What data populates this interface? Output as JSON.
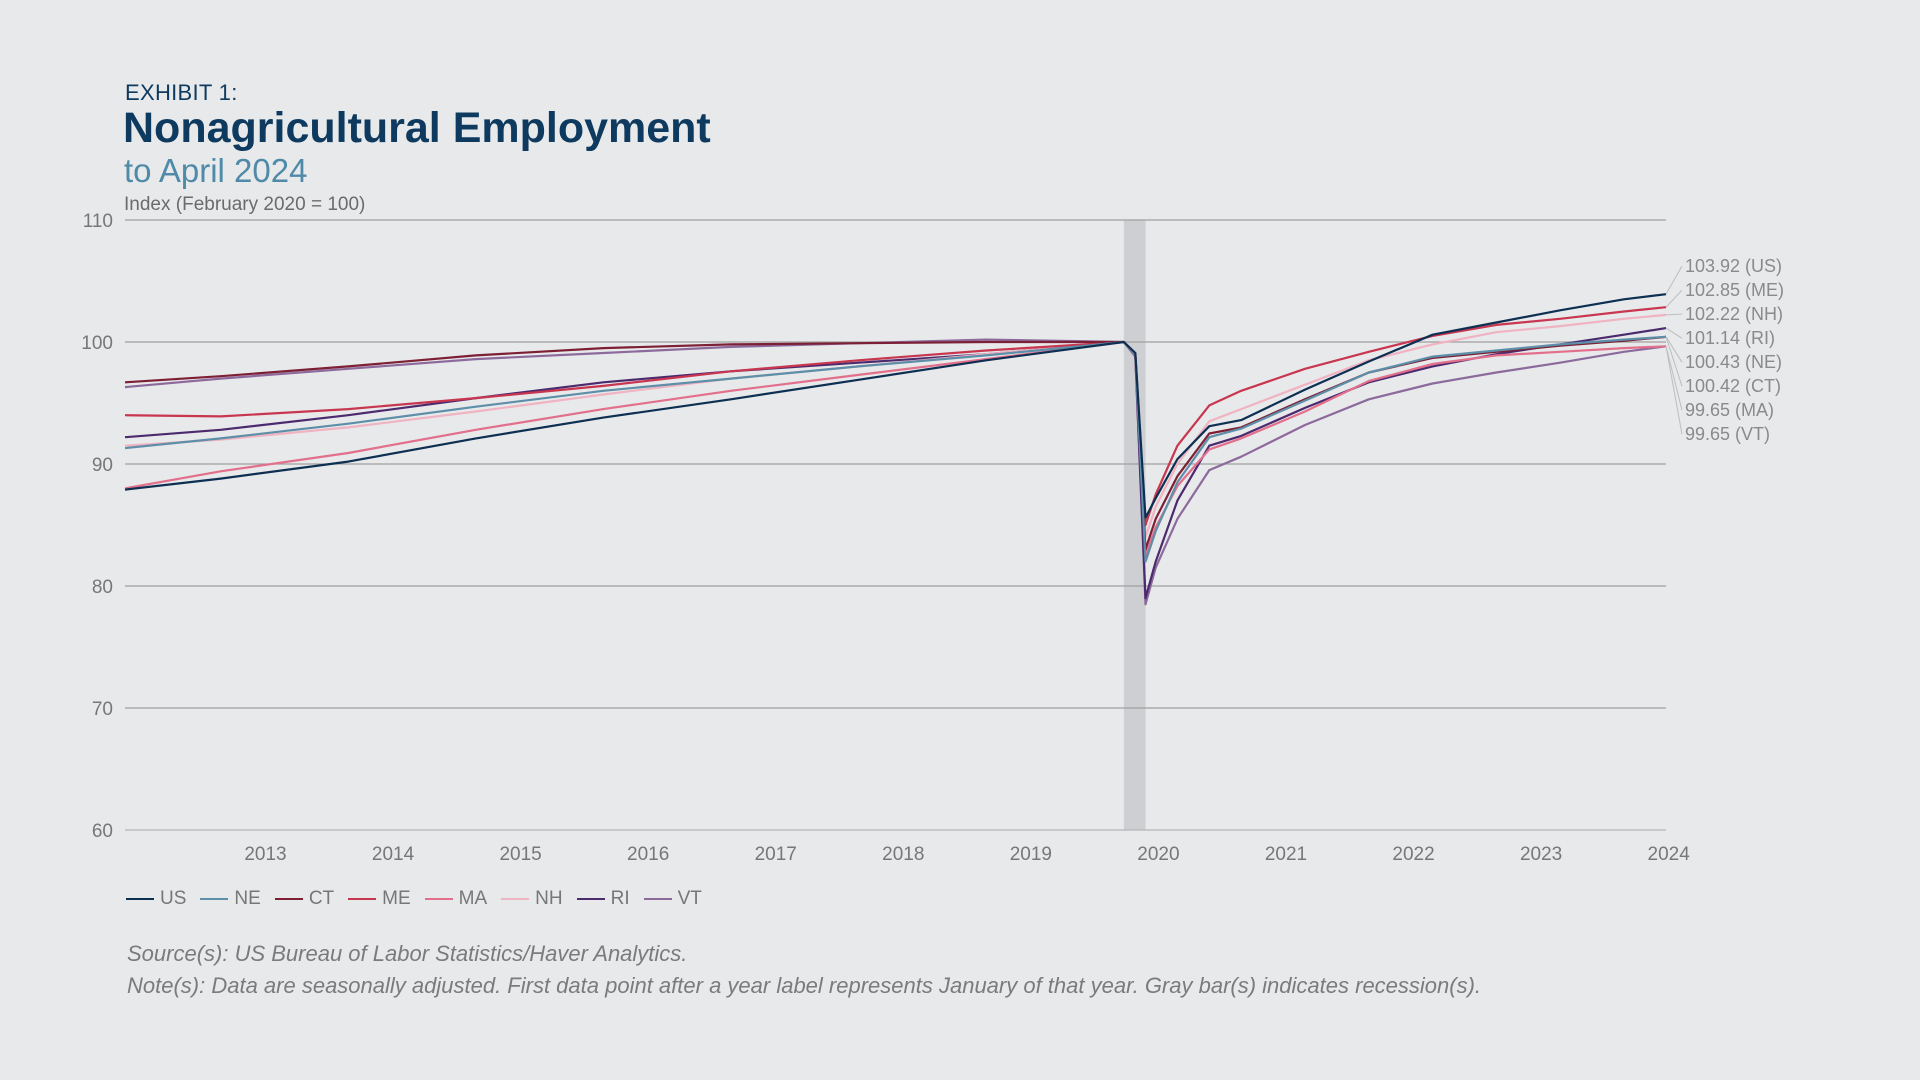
{
  "header": {
    "exhibit": "EXHIBIT 1:",
    "title": "Nonagricultural Employment",
    "subtitle": "to April 2024",
    "unit": "Index (February 2020 = 100)"
  },
  "notes": {
    "source": "Source(s): US Bureau of Labor Statistics/Haver Analytics.",
    "note": "Note(s): Data are seasonally adjusted. First data point after a year label represents January of that year. Gray bar(s) indicates recession(s)."
  },
  "chart_data": {
    "type": "line",
    "ylim": [
      60,
      110
    ],
    "yticks": [
      "60",
      "70",
      "80",
      "90",
      "100",
      "110"
    ],
    "xlim": [
      2012.25,
      2024.33
    ],
    "xticks": [
      "2013",
      "2014",
      "2015",
      "2016",
      "2017",
      "2018",
      "2019",
      "2020",
      "2021",
      "2022",
      "2023",
      "2024"
    ],
    "recession": [
      2020.08,
      2020.25
    ],
    "grid": true,
    "legend_position": "bottom-left",
    "series": [
      {
        "name": "US",
        "color": "#0d2f52",
        "end_label": "103.92 (US)",
        "points": [
          [
            2012.25,
            87.9
          ],
          [
            2013,
            88.8
          ],
          [
            2014,
            90.2
          ],
          [
            2015,
            92.1
          ],
          [
            2016,
            93.8
          ],
          [
            2017,
            95.3
          ],
          [
            2018,
            96.9
          ],
          [
            2019,
            98.5
          ],
          [
            2020.08,
            100
          ],
          [
            2020.17,
            99.1
          ],
          [
            2020.25,
            85.6
          ],
          [
            2020.33,
            87.2
          ],
          [
            2020.5,
            90.4
          ],
          [
            2020.75,
            93.1
          ],
          [
            2021,
            93.6
          ],
          [
            2021.5,
            96.1
          ],
          [
            2022,
            98.4
          ],
          [
            2022.5,
            100.6
          ],
          [
            2023,
            101.6
          ],
          [
            2023.5,
            102.6
          ],
          [
            2024,
            103.5
          ],
          [
            2024.33,
            103.92
          ]
        ]
      },
      {
        "name": "NE",
        "color": "#5e8fa8",
        "end_label": "100.43 (NE)",
        "points": [
          [
            2012.25,
            91.3
          ],
          [
            2013,
            92.1
          ],
          [
            2014,
            93.3
          ],
          [
            2015,
            94.7
          ],
          [
            2016,
            96.0
          ],
          [
            2017,
            97.0
          ],
          [
            2018,
            98.0
          ],
          [
            2019,
            98.9
          ],
          [
            2020.08,
            100
          ],
          [
            2020.17,
            99.0
          ],
          [
            2020.25,
            82.0
          ],
          [
            2020.33,
            84.5
          ],
          [
            2020.5,
            88.5
          ],
          [
            2020.75,
            92.2
          ],
          [
            2021,
            92.9
          ],
          [
            2021.5,
            95.2
          ],
          [
            2022,
            97.5
          ],
          [
            2022.5,
            98.8
          ],
          [
            2023,
            99.3
          ],
          [
            2023.5,
            99.8
          ],
          [
            2024,
            100.2
          ],
          [
            2024.33,
            100.43
          ]
        ]
      },
      {
        "name": "CT",
        "color": "#7d1f35",
        "end_label": "100.42 (CT)",
        "points": [
          [
            2012.25,
            96.7
          ],
          [
            2013,
            97.2
          ],
          [
            2014,
            98.0
          ],
          [
            2015,
            98.9
          ],
          [
            2016,
            99.5
          ],
          [
            2017,
            99.8
          ],
          [
            2018,
            99.9
          ],
          [
            2019,
            100.0
          ],
          [
            2020.08,
            100
          ],
          [
            2020.17,
            99.0
          ],
          [
            2020.25,
            83.0
          ],
          [
            2020.33,
            85.5
          ],
          [
            2020.5,
            89.0
          ],
          [
            2020.75,
            92.5
          ],
          [
            2021,
            93.0
          ],
          [
            2021.5,
            95.3
          ],
          [
            2022,
            97.5
          ],
          [
            2022.5,
            98.7
          ],
          [
            2023,
            99.2
          ],
          [
            2023.5,
            99.7
          ],
          [
            2024,
            100.1
          ],
          [
            2024.33,
            100.42
          ]
        ]
      },
      {
        "name": "ME",
        "color": "#c8364f",
        "end_label": "102.85 (ME)",
        "points": [
          [
            2012.25,
            94.0
          ],
          [
            2013,
            93.9
          ],
          [
            2014,
            94.5
          ],
          [
            2015,
            95.4
          ],
          [
            2016,
            96.4
          ],
          [
            2017,
            97.6
          ],
          [
            2018,
            98.5
          ],
          [
            2019,
            99.3
          ],
          [
            2020.08,
            100
          ],
          [
            2020.17,
            99.1
          ],
          [
            2020.25,
            85.0
          ],
          [
            2020.33,
            87.5
          ],
          [
            2020.5,
            91.5
          ],
          [
            2020.75,
            94.8
          ],
          [
            2021,
            96.0
          ],
          [
            2021.5,
            97.8
          ],
          [
            2022,
            99.2
          ],
          [
            2022.5,
            100.5
          ],
          [
            2023,
            101.4
          ],
          [
            2023.5,
            101.9
          ],
          [
            2024,
            102.5
          ],
          [
            2024.33,
            102.85
          ]
        ]
      },
      {
        "name": "MA",
        "color": "#e26f8c",
        "end_label": "99.65 (MA)",
        "points": [
          [
            2012.25,
            88.0
          ],
          [
            2013,
            89.4
          ],
          [
            2014,
            90.9
          ],
          [
            2015,
            92.8
          ],
          [
            2016,
            94.5
          ],
          [
            2017,
            96.0
          ],
          [
            2018,
            97.3
          ],
          [
            2019,
            98.6
          ],
          [
            2020.08,
            100
          ],
          [
            2020.17,
            99.0
          ],
          [
            2020.25,
            82.5
          ],
          [
            2020.33,
            84.8
          ],
          [
            2020.5,
            88.2
          ],
          [
            2020.75,
            91.2
          ],
          [
            2021,
            92.1
          ],
          [
            2021.5,
            94.3
          ],
          [
            2022,
            96.8
          ],
          [
            2022.5,
            98.2
          ],
          [
            2023,
            98.9
          ],
          [
            2023.5,
            99.2
          ],
          [
            2024,
            99.5
          ],
          [
            2024.33,
            99.65
          ]
        ]
      },
      {
        "name": "NH",
        "color": "#f0b3c2",
        "end_label": "102.22 (NH)",
        "points": [
          [
            2012.25,
            91.5
          ],
          [
            2013,
            92.0
          ],
          [
            2014,
            93.0
          ],
          [
            2015,
            94.3
          ],
          [
            2016,
            95.7
          ],
          [
            2017,
            97.0
          ],
          [
            2018,
            98.0
          ],
          [
            2019,
            99.0
          ],
          [
            2020.08,
            100
          ],
          [
            2020.17,
            99.0
          ],
          [
            2020.25,
            84.0
          ],
          [
            2020.33,
            86.5
          ],
          [
            2020.5,
            90.0
          ],
          [
            2020.75,
            93.5
          ],
          [
            2021,
            94.5
          ],
          [
            2021.5,
            96.5
          ],
          [
            2022,
            98.5
          ],
          [
            2022.5,
            99.8
          ],
          [
            2023,
            100.8
          ],
          [
            2023.5,
            101.3
          ],
          [
            2024,
            101.9
          ],
          [
            2024.33,
            102.22
          ]
        ]
      },
      {
        "name": "RI",
        "color": "#4b2a6e",
        "end_label": "101.14 (RI)",
        "points": [
          [
            2012.25,
            92.2
          ],
          [
            2013,
            92.8
          ],
          [
            2014,
            94.0
          ],
          [
            2015,
            95.4
          ],
          [
            2016,
            96.7
          ],
          [
            2017,
            97.6
          ],
          [
            2018,
            98.3
          ],
          [
            2019,
            99.0
          ],
          [
            2020.08,
            100
          ],
          [
            2020.17,
            99.0
          ],
          [
            2020.25,
            79.0
          ],
          [
            2020.33,
            82.0
          ],
          [
            2020.5,
            87.0
          ],
          [
            2020.75,
            91.5
          ],
          [
            2021,
            92.3
          ],
          [
            2021.5,
            94.6
          ],
          [
            2022,
            96.7
          ],
          [
            2022.5,
            98.0
          ],
          [
            2023,
            99.0
          ],
          [
            2023.5,
            99.8
          ],
          [
            2024,
            100.6
          ],
          [
            2024.33,
            101.14
          ]
        ]
      },
      {
        "name": "VT",
        "color": "#8c6a9c",
        "end_label": "99.65 (VT)",
        "points": [
          [
            2012.25,
            96.3
          ],
          [
            2013,
            97.0
          ],
          [
            2014,
            97.8
          ],
          [
            2015,
            98.6
          ],
          [
            2016,
            99.1
          ],
          [
            2017,
            99.6
          ],
          [
            2018,
            99.9
          ],
          [
            2019,
            100.2
          ],
          [
            2020.08,
            100
          ],
          [
            2020.17,
            98.8
          ],
          [
            2020.25,
            78.5
          ],
          [
            2020.33,
            81.5
          ],
          [
            2020.5,
            85.5
          ],
          [
            2020.75,
            89.5
          ],
          [
            2021,
            90.6
          ],
          [
            2021.5,
            93.2
          ],
          [
            2022,
            95.3
          ],
          [
            2022.5,
            96.6
          ],
          [
            2023,
            97.5
          ],
          [
            2023.5,
            98.3
          ],
          [
            2024,
            99.2
          ],
          [
            2024.33,
            99.65
          ]
        ]
      }
    ]
  }
}
